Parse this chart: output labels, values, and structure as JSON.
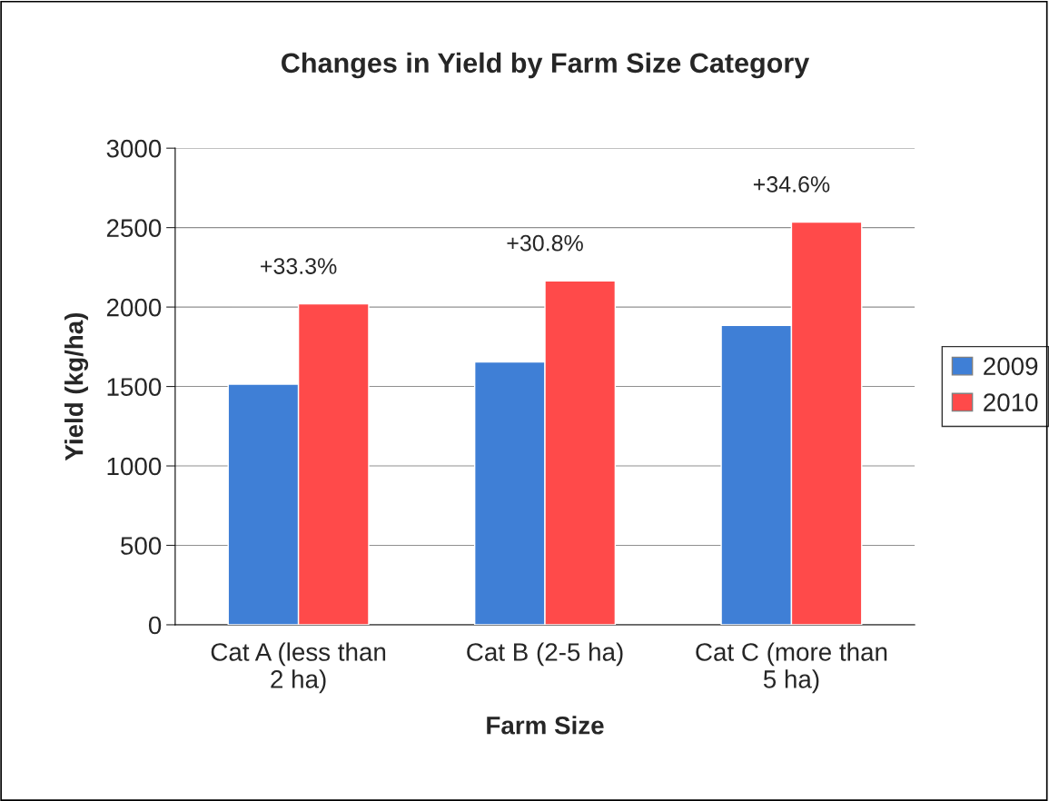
{
  "chart_data": {
    "type": "bar",
    "title": "Changes in Yield by Farm Size Category",
    "xlabel": "Farm Size",
    "ylabel": "Yield (kg/ha)",
    "categories": [
      "Cat A (less than\n2 ha)",
      "Cat B (2-5 ha)",
      "Cat C (more than\n5 ha)"
    ],
    "series": [
      {
        "name": "2009",
        "color": "#3f7fd6",
        "values": [
          1515,
          1655,
          1885
        ]
      },
      {
        "name": "2010",
        "color": "#ff4a4a",
        "values": [
          2020,
          2165,
          2535
        ]
      }
    ],
    "ylim": [
      0,
      3000
    ],
    "yticks": [
      0,
      500,
      1000,
      1500,
      2000,
      2500,
      3000
    ],
    "grid": "y",
    "legend": "right",
    "annotations": [
      {
        "text": "+33.3%",
        "x": "Cat A (less than\n2 ha)",
        "y": 2020
      },
      {
        "text": "+30.8%",
        "x": "Cat B (2-5 ha)",
        "y": 2165
      },
      {
        "text": "+34.6%",
        "x": "Cat C (more than\n5 ha)",
        "y": 2535
      }
    ]
  }
}
